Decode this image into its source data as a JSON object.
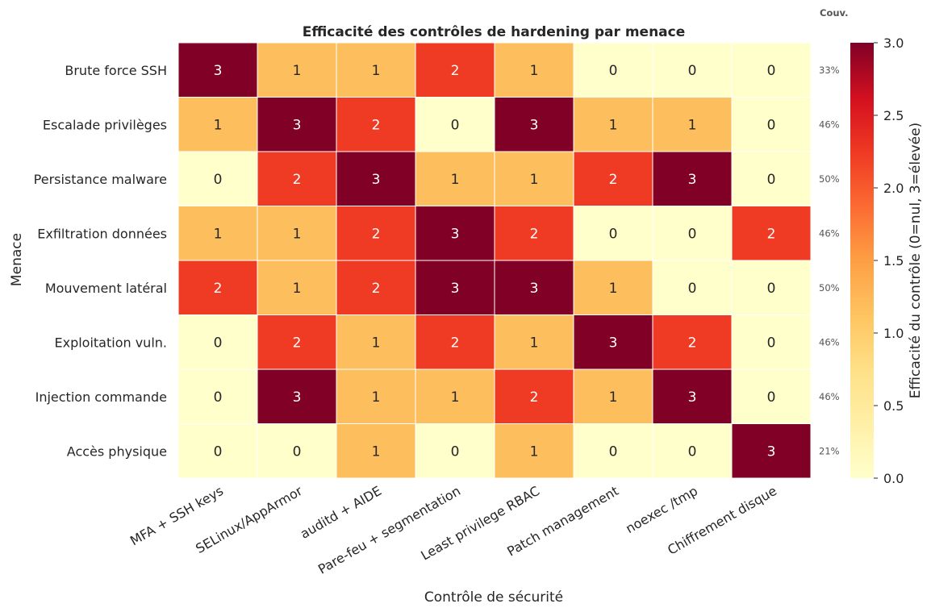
{
  "colors": {
    "scale": [
      "#ffffcc",
      "#fdbf5e",
      "#f03b24",
      "#800026"
    ],
    "text_light": "#ffffff",
    "text_dark": "#262626",
    "grid": "#ffffff"
  },
  "chart_data": {
    "type": "heatmap",
    "title": "Efficacité des contrôles de hardening par menace",
    "xlabel": "Contrôle de sécurité",
    "ylabel": "Menace",
    "rows": [
      "Brute force SSH",
      "Escalade privilèges",
      "Persistance malware",
      "Exfiltration données",
      "Mouvement latéral",
      "Exploitation vuln.",
      "Injection commande",
      "Accès physique"
    ],
    "columns": [
      "MFA + SSH keys",
      "SELinux/AppArmor",
      "auditd + AIDE",
      "Pare-feu + segmentation",
      "Least privilege RBAC",
      "Patch management",
      "noexec /tmp",
      "Chiffrement disque"
    ],
    "values": [
      [
        3,
        1,
        1,
        2,
        1,
        0,
        0,
        0
      ],
      [
        1,
        3,
        2,
        0,
        3,
        1,
        1,
        0
      ],
      [
        0,
        2,
        3,
        1,
        1,
        2,
        3,
        0
      ],
      [
        1,
        1,
        2,
        3,
        2,
        0,
        0,
        2
      ],
      [
        2,
        1,
        2,
        3,
        3,
        1,
        0,
        0
      ],
      [
        0,
        2,
        1,
        2,
        1,
        3,
        2,
        0
      ],
      [
        0,
        3,
        1,
        1,
        2,
        1,
        3,
        0
      ],
      [
        0,
        0,
        1,
        0,
        1,
        0,
        0,
        3
      ]
    ],
    "coverage_header": "Couv.",
    "coverage": [
      "33%",
      "46%",
      "50%",
      "46%",
      "50%",
      "46%",
      "46%",
      "21%"
    ],
    "colorbar": {
      "label": "Efficacité du contrôle (0=nul, 3=élevée)",
      "vmin": 0,
      "vmax": 3,
      "ticks": [
        "0.0",
        "0.5",
        "1.0",
        "1.5",
        "2.0",
        "2.5",
        "3.0"
      ]
    }
  }
}
